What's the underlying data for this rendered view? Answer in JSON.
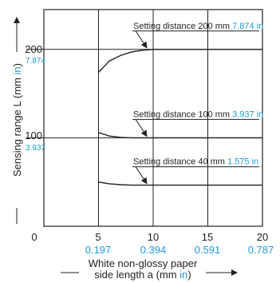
{
  "chart_data": {
    "type": "line",
    "x_ticks": [
      "0",
      "5",
      "10",
      "15",
      "20"
    ],
    "x_ticks_in": [
      "0.197",
      "0.394",
      "0.591",
      "0.787"
    ],
    "y_ticks": [
      "100",
      "200"
    ],
    "y_ticks_in": [
      "3.937",
      "7.874"
    ],
    "xlim": [
      0,
      20
    ],
    "ylim": [
      0,
      245
    ],
    "xlabel_line1": "White non-glossy paper",
    "xlabel_line2_pre": "side length a (mm ",
    "xlabel_line2_in": "in",
    "xlabel_line2_post": ")",
    "ylabel_pre": "Sensing range L (mm ",
    "ylabel_in": "in",
    "ylabel_post": ")",
    "grid": true,
    "colors": {
      "mm_text": "#231f20",
      "inch_text": "#1e9bd7",
      "line": "#231f20"
    },
    "series": [
      {
        "label_mm": "Setting distance 200 mm",
        "label_in": "7.874 in",
        "points": [
          [
            5,
            174
          ],
          [
            6,
            187
          ],
          [
            7,
            193
          ],
          [
            8,
            197
          ],
          [
            9,
            199
          ],
          [
            10,
            200
          ],
          [
            13,
            200
          ],
          [
            20,
            200
          ]
        ]
      },
      {
        "label_mm": "Setting distance 100 mm",
        "label_in": "3.937 in",
        "points": [
          [
            5,
            106
          ],
          [
            6,
            102
          ],
          [
            7,
            100.5
          ],
          [
            8,
            100
          ],
          [
            20,
            100
          ]
        ]
      },
      {
        "label_mm": "Setting distance 40 mm",
        "label_in": "1.575 in",
        "points": [
          [
            5,
            50
          ],
          [
            6,
            48
          ],
          [
            7,
            47
          ],
          [
            8,
            46.5
          ],
          [
            20,
            46.5
          ]
        ]
      }
    ]
  }
}
